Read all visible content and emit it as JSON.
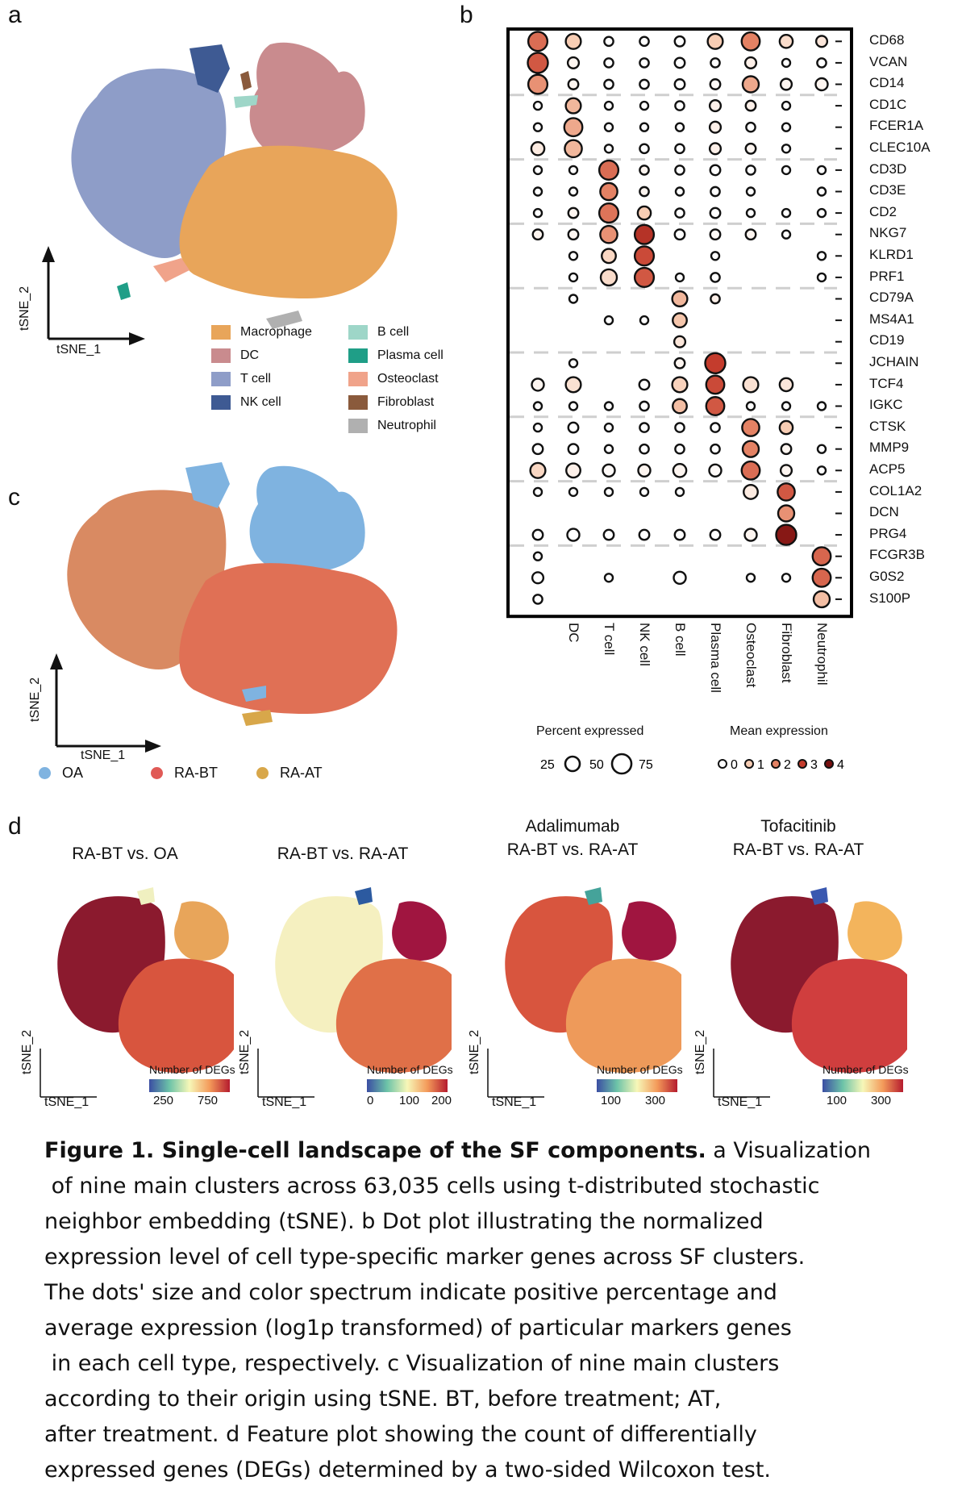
{
  "panels": {
    "a": "a",
    "b": "b",
    "c": "c",
    "d": "d"
  },
  "axes": {
    "tsne1": "tSNE_1",
    "tsne2": "tSNE_2"
  },
  "cluster_legend": [
    {
      "label": "Macrophage",
      "color": "#e8a55a"
    },
    {
      "label": "DC",
      "color": "#c98b8e"
    },
    {
      "label": "T cell",
      "color": "#8e9dc8"
    },
    {
      "label": "NK cell",
      "color": "#3e5a93"
    },
    {
      "label": "B cell",
      "color": "#9ed6c8"
    },
    {
      "label": "Plasma cell",
      "color": "#1f9e87"
    },
    {
      "label": "Osteoclast",
      "color": "#f0a38a"
    },
    {
      "label": "Fibroblast",
      "color": "#8a5a3c"
    },
    {
      "label": "Neutrophil",
      "color": "#b0b0b0"
    }
  ],
  "origin_legend": [
    {
      "label": "OA",
      "color": "#7fb3e0"
    },
    {
      "label": "RA-BT",
      "color": "#e05a56"
    },
    {
      "label": "RA-AT",
      "color": "#d8a74a"
    }
  ],
  "chart_data": {
    "type": "dotplot",
    "genes": [
      "CD68",
      "VCAN",
      "CD14",
      "CD1C",
      "FCER1A",
      "CLEC10A",
      "CD3D",
      "CD3E",
      "CD2",
      "NKG7",
      "KLRD1",
      "PRF1",
      "CD79A",
      "MS4A1",
      "CD19",
      "JCHAIN",
      "TCF4",
      "IGKC",
      "CTSK",
      "MMP9",
      "ACP5",
      "COL1A2",
      "DCN",
      "PRG4",
      "FCGR3B",
      "G0S2",
      "S100P"
    ],
    "cell_types": [
      "Macrophage",
      "DC",
      "T cell",
      "NK cell",
      "B cell",
      "Plasma cell",
      "Osteoclast",
      "Fibroblast",
      "Neutrophil"
    ],
    "x_labels": [
      "",
      "DC",
      "T cell",
      "NK cell",
      "B cell",
      "Plasma cell",
      "Osteoclast",
      "Fibroblast",
      "Neutrophil"
    ],
    "percent_expressed": [
      [
        75,
        55,
        25,
        25,
        30,
        55,
        70,
        45,
        35
      ],
      [
        80,
        35,
        25,
        25,
        30,
        25,
        35,
        20,
        25
      ],
      [
        75,
        30,
        25,
        25,
        30,
        30,
        60,
        35,
        40
      ],
      [
        20,
        55,
        20,
        20,
        25,
        35,
        30,
        20,
        0
      ],
      [
        20,
        70,
        20,
        20,
        20,
        35,
        25,
        20,
        0
      ],
      [
        45,
        65,
        20,
        25,
        25,
        35,
        30,
        20,
        0
      ],
      [
        20,
        20,
        75,
        25,
        25,
        30,
        25,
        20,
        20
      ],
      [
        20,
        20,
        65,
        25,
        20,
        25,
        20,
        0,
        20
      ],
      [
        20,
        30,
        75,
        45,
        25,
        30,
        20,
        20,
        20
      ],
      [
        30,
        30,
        65,
        75,
        30,
        30,
        30,
        20,
        0
      ],
      [
        0,
        20,
        50,
        75,
        0,
        20,
        0,
        0,
        20
      ],
      [
        0,
        20,
        60,
        75,
        20,
        25,
        0,
        0,
        20
      ],
      [
        0,
        20,
        0,
        0,
        55,
        25,
        0,
        0,
        0
      ],
      [
        0,
        0,
        20,
        20,
        50,
        0,
        0,
        0,
        0
      ],
      [
        0,
        0,
        0,
        0,
        35,
        0,
        0,
        0,
        0
      ],
      [
        0,
        20,
        0,
        0,
        30,
        80,
        0,
        0,
        0
      ],
      [
        40,
        55,
        0,
        30,
        55,
        70,
        55,
        45,
        0
      ],
      [
        20,
        20,
        20,
        25,
        50,
        70,
        20,
        20,
        20
      ],
      [
        20,
        30,
        20,
        25,
        25,
        25,
        65,
        45,
        0
      ],
      [
        30,
        30,
        20,
        25,
        25,
        25,
        60,
        30,
        20
      ],
      [
        55,
        50,
        40,
        40,
        45,
        40,
        70,
        35,
        20
      ],
      [
        20,
        20,
        20,
        20,
        20,
        0,
        50,
        65,
        0
      ],
      [
        0,
        0,
        0,
        0,
        0,
        0,
        0,
        60,
        0
      ],
      [
        30,
        40,
        30,
        30,
        30,
        30,
        40,
        80,
        0
      ],
      [
        20,
        0,
        0,
        0,
        0,
        0,
        0,
        0,
        70
      ],
      [
        35,
        0,
        20,
        0,
        40,
        0,
        20,
        20,
        70
      ],
      [
        25,
        0,
        0,
        0,
        0,
        0,
        0,
        0,
        60
      ]
    ],
    "mean_expression": [
      [
        2.3,
        1.0,
        0,
        0,
        0,
        1.0,
        2.0,
        0.7,
        0.5
      ],
      [
        2.6,
        0.2,
        0,
        0,
        0,
        0,
        0.3,
        0,
        0
      ],
      [
        1.8,
        0.2,
        0,
        0,
        0,
        0.1,
        1.5,
        0.2,
        0.2
      ],
      [
        0,
        1.3,
        0,
        0,
        0,
        0.3,
        0.3,
        0,
        0
      ],
      [
        0,
        1.5,
        0,
        0,
        0,
        0.3,
        0,
        0,
        0
      ],
      [
        0.4,
        1.3,
        0,
        0,
        0,
        0.3,
        0.2,
        0,
        0
      ],
      [
        0,
        0,
        2.3,
        0.2,
        0,
        0,
        0,
        0,
        0
      ],
      [
        0,
        0,
        2.0,
        0.2,
        0,
        0,
        0,
        0,
        0
      ],
      [
        0,
        0.2,
        2.2,
        1.0,
        0,
        0,
        0,
        0,
        0
      ],
      [
        0.2,
        0.2,
        1.8,
        3.2,
        0,
        0.1,
        0.2,
        0,
        0
      ],
      [
        0,
        0,
        0.8,
        2.8,
        0,
        0,
        0,
        0,
        0
      ],
      [
        0,
        0,
        0.7,
        2.6,
        0,
        0,
        0,
        0,
        0
      ],
      [
        0,
        0,
        0,
        0,
        1.3,
        0.3,
        0,
        0,
        0
      ],
      [
        0,
        0,
        0,
        0,
        1.1,
        0,
        0,
        0,
        0
      ],
      [
        0,
        0,
        0,
        0,
        0.5,
        0,
        0,
        0,
        0
      ],
      [
        0,
        0,
        0,
        0,
        0.2,
        3.0,
        0,
        0,
        0
      ],
      [
        0.2,
        0.6,
        0,
        0,
        0.9,
        2.8,
        0.6,
        0.5,
        0
      ],
      [
        0,
        0,
        0,
        0,
        1.2,
        2.6,
        0,
        0,
        0
      ],
      [
        0,
        0,
        0,
        0,
        0,
        0,
        2.0,
        1.0,
        0
      ],
      [
        0,
        0,
        0,
        0,
        0,
        0,
        2.0,
        0.2,
        0
      ],
      [
        0.8,
        0.3,
        0.1,
        0.2,
        0.2,
        0.1,
        2.3,
        0.2,
        0
      ],
      [
        0,
        0,
        0,
        0,
        0,
        0,
        0.4,
        2.6,
        0
      ],
      [
        0,
        0,
        0,
        0,
        0,
        0,
        0,
        1.8,
        0
      ],
      [
        0,
        0,
        0,
        0,
        0,
        0,
        0.2,
        3.8,
        0
      ],
      [
        0,
        0,
        0,
        0,
        0,
        0,
        0,
        0,
        2.4
      ],
      [
        0,
        0,
        0,
        0,
        0,
        0,
        0,
        0,
        2.4
      ],
      [
        0,
        0,
        0,
        0,
        0,
        0,
        0,
        0,
        1.2
      ]
    ],
    "size_legend": {
      "title": "Percent expressed",
      "values": [
        25,
        50,
        75
      ]
    },
    "color_legend": {
      "title": "Mean expression",
      "values": [
        0,
        1,
        2,
        3,
        4
      ]
    }
  },
  "feature_plots": [
    {
      "title_line1": "",
      "title_line2": "RA-BT vs. OA",
      "cbar_title": "Number of DEGs",
      "ticks": [
        "250",
        "750"
      ]
    },
    {
      "title_line1": "",
      "title_line2": "RA-BT vs. RA-AT",
      "cbar_title": "Number of DEGs",
      "ticks": [
        "0",
        "100",
        "200"
      ]
    },
    {
      "title_line1": "Adalimumab",
      "title_line2": "RA-BT vs. RA-AT",
      "cbar_title": "Number of DEGs",
      "ticks": [
        "100",
        "300"
      ]
    },
    {
      "title_line1": "Tofacitinib",
      "title_line2": "RA-BT vs. RA-AT",
      "cbar_title": "Number of DEGs",
      "ticks": [
        "100",
        "300"
      ]
    }
  ],
  "caption": {
    "bold": "Figure 1. Single-cell landscape of the SF components.",
    "line1": " a Visualization",
    "lines": [
      " of nine main clusters across 63,035 cells using t-distributed stochastic",
      "neighbor embedding (tSNE). b Dot plot illustrating the normalized",
      "expression level of cell type-specific marker genes across SF clusters.",
      "The dots' size and color spectrum indicate positive percentage and",
      "average expression (log1p transformed) of particular markers genes",
      " in each cell type, respectively. c Visualization of nine main clusters",
      "according to their origin using tSNE. BT, before treatment; AT,",
      "after treatment. d Feature plot showing the count of differentially",
      "expressed genes (DEGs) determined by a two-sided Wilcoxon test."
    ]
  }
}
